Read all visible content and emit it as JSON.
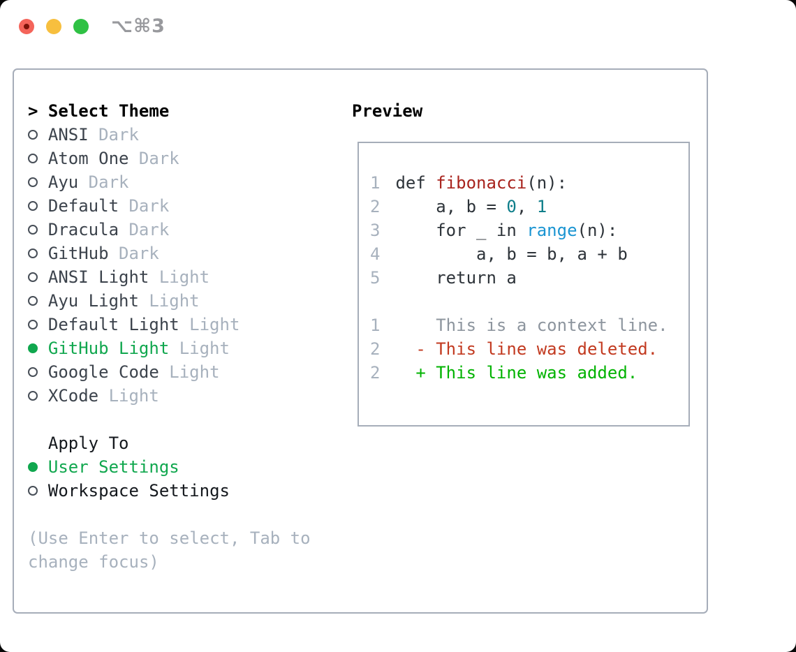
{
  "window": {
    "title": "⌥⌘3"
  },
  "colors": {
    "traffic_red": "#f4645a",
    "traffic_yellow": "#f7bf3e",
    "traffic_green": "#2fc144",
    "border_gray": "#a6adb9",
    "item_text": "#3c434c",
    "muted_gray": "#a7b1bd",
    "context_gray": "#8d959e",
    "selected_green": "#10a74e",
    "added_green": "#00b300",
    "deleted_red": "#c23a20",
    "function_red": "#a8231d",
    "number_teal": "#0e7e8a",
    "builtin_blue": "#1b95d2",
    "code_text": "#2d3339"
  },
  "theme_panel": {
    "header_marker": ">",
    "header": "Select Theme",
    "items": [
      {
        "name": "ANSI",
        "variant": "Dark",
        "selected": false
      },
      {
        "name": "Atom One",
        "variant": "Dark",
        "selected": false
      },
      {
        "name": "Ayu",
        "variant": "Dark",
        "selected": false
      },
      {
        "name": "Default",
        "variant": "Dark",
        "selected": false
      },
      {
        "name": "Dracula",
        "variant": "Dark",
        "selected": false
      },
      {
        "name": "GitHub",
        "variant": "Dark",
        "selected": false
      },
      {
        "name": "ANSI Light",
        "variant": "Light",
        "selected": false
      },
      {
        "name": "Ayu Light",
        "variant": "Light",
        "selected": false
      },
      {
        "name": "Default Light",
        "variant": "Light",
        "selected": false
      },
      {
        "name": "GitHub Light",
        "variant": "Light",
        "selected": true
      },
      {
        "name": "Google Code",
        "variant": "Light",
        "selected": false
      },
      {
        "name": "XCode",
        "variant": "Light",
        "selected": false
      }
    ]
  },
  "apply_panel": {
    "header": "Apply To",
    "items": [
      {
        "label": "User Settings",
        "selected": true
      },
      {
        "label": "Workspace Settings",
        "selected": false
      }
    ]
  },
  "hint": "(Use Enter to select, Tab to change focus)",
  "preview": {
    "title": "Preview",
    "code_lines": [
      {
        "num": "1",
        "tokens": [
          {
            "t": "def ",
            "c": "plain"
          },
          {
            "t": "fibonacci",
            "c": "fn"
          },
          {
            "t": "(n):",
            "c": "plain"
          }
        ]
      },
      {
        "num": "2",
        "tokens": [
          {
            "t": "    a, b = ",
            "c": "plain"
          },
          {
            "t": "0",
            "c": "num"
          },
          {
            "t": ", ",
            "c": "plain"
          },
          {
            "t": "1",
            "c": "num"
          }
        ]
      },
      {
        "num": "3",
        "tokens": [
          {
            "t": "    for _ in ",
            "c": "plain"
          },
          {
            "t": "range",
            "c": "builtin"
          },
          {
            "t": "(n):",
            "c": "plain"
          }
        ]
      },
      {
        "num": "4",
        "tokens": [
          {
            "t": "        a, b = b, a + b",
            "c": "plain"
          }
        ]
      },
      {
        "num": "5",
        "tokens": [
          {
            "t": "    return a",
            "c": "plain"
          }
        ]
      }
    ],
    "diff_lines": [
      {
        "num": "1",
        "text": "    This is a context line.",
        "cls": "context"
      },
      {
        "num": "2",
        "text": "  - This line was deleted.",
        "cls": "deleted"
      },
      {
        "num": "2",
        "text": "  + This line was added.",
        "cls": "added"
      }
    ]
  }
}
